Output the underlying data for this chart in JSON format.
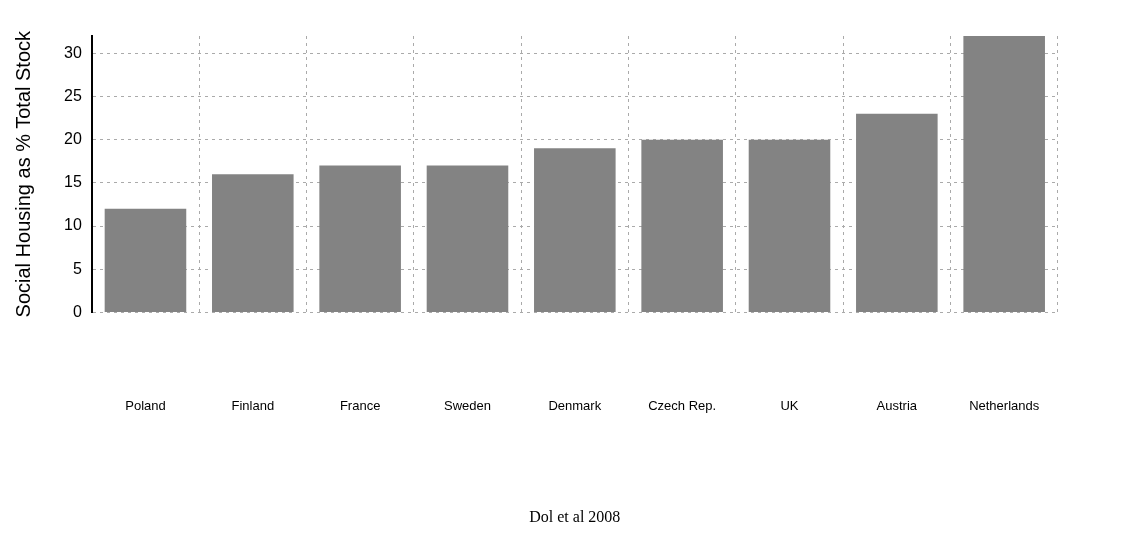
{
  "chart_data": {
    "type": "bar",
    "ylabel": "Social Housing as % Total Stock",
    "categories": [
      "Poland",
      "Finland",
      "France",
      "Sweden",
      "Denmark",
      "Czech Rep.",
      "UK",
      "Austria",
      "Netherlands"
    ],
    "values": [
      12,
      16,
      17,
      17,
      19,
      20,
      20,
      23,
      32
    ],
    "color": "#838383",
    "ylim": [
      0,
      32
    ],
    "yticks": [
      0,
      5,
      10,
      15,
      20,
      25,
      30
    ],
    "grid": true,
    "annotations": [
      "Dol et al 2008"
    ]
  }
}
